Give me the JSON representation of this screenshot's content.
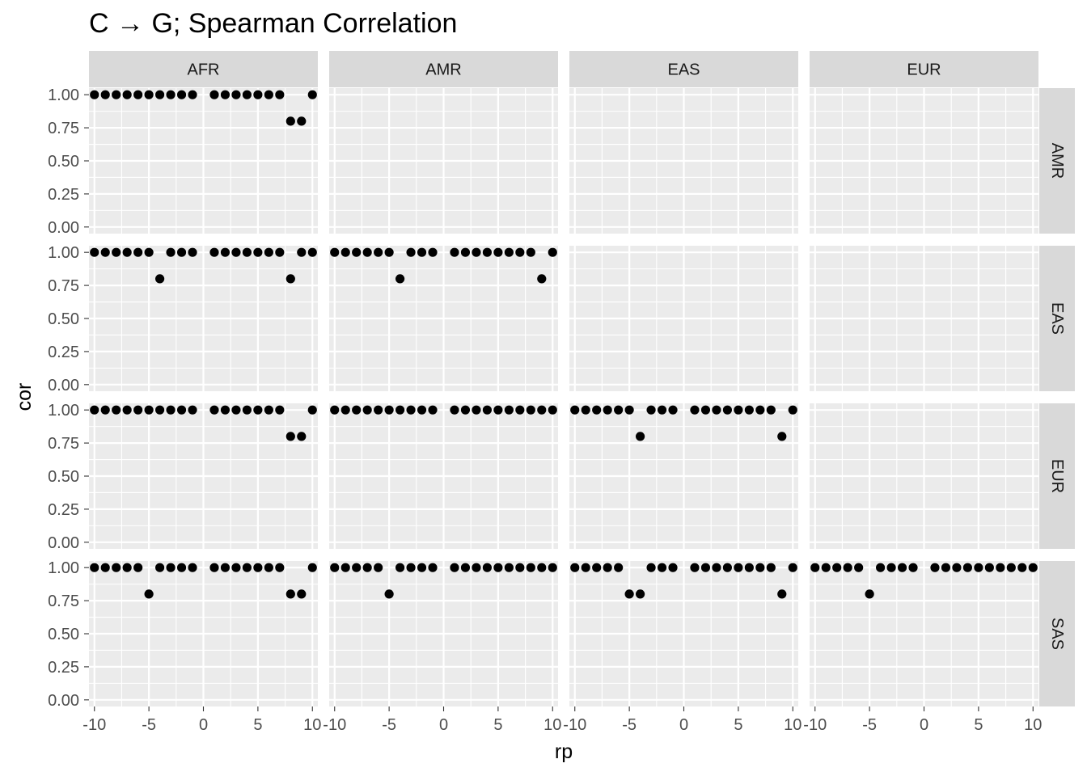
{
  "chart_data": {
    "type": "scatter",
    "title": "C → G; Spearman Correlation",
    "xlabel": "rp",
    "ylabel": "cor",
    "xlim": [
      -10.5,
      10.5
    ],
    "ylim": [
      -0.05,
      1.05
    ],
    "x_ticks": [
      -10,
      -5,
      0,
      5,
      10
    ],
    "x_tick_labels": [
      "-10",
      "-5",
      "0",
      "5",
      "10"
    ],
    "y_ticks": [
      0,
      0.25,
      0.5,
      0.75,
      1.0
    ],
    "y_tick_labels": [
      "0.00",
      "0.25",
      "0.50",
      "0.75",
      "1.00"
    ],
    "facet_cols": [
      "AFR",
      "AMR",
      "EAS",
      "EUR"
    ],
    "facet_rows": [
      "AMR",
      "EAS",
      "EUR",
      "SAS"
    ],
    "grid": true,
    "panels": [
      {
        "row": "AMR",
        "col": "AFR",
        "x": [
          -10,
          -9,
          -8,
          -7,
          -6,
          -5,
          -4,
          -3,
          -2,
          -1,
          1,
          2,
          3,
          4,
          5,
          6,
          7,
          8,
          9,
          10
        ],
        "y": [
          1,
          1,
          1,
          1,
          1,
          1,
          1,
          1,
          1,
          1,
          1,
          1,
          1,
          1,
          1,
          1,
          1,
          0.8,
          0.8,
          1
        ]
      },
      {
        "row": "AMR",
        "col": "AMR",
        "x": [],
        "y": []
      },
      {
        "row": "AMR",
        "col": "EAS",
        "x": [],
        "y": []
      },
      {
        "row": "AMR",
        "col": "EUR",
        "x": [],
        "y": []
      },
      {
        "row": "EAS",
        "col": "AFR",
        "x": [
          -10,
          -9,
          -8,
          -7,
          -6,
          -5,
          -4,
          -3,
          -2,
          -1,
          1,
          2,
          3,
          4,
          5,
          6,
          7,
          8,
          9,
          10
        ],
        "y": [
          1,
          1,
          1,
          1,
          1,
          1,
          0.8,
          1,
          1,
          1,
          1,
          1,
          1,
          1,
          1,
          1,
          1,
          0.8,
          1,
          1
        ]
      },
      {
        "row": "EAS",
        "col": "AMR",
        "x": [
          -10,
          -9,
          -8,
          -7,
          -6,
          -5,
          -4,
          -3,
          -2,
          -1,
          1,
          2,
          3,
          4,
          5,
          6,
          7,
          8,
          9,
          10
        ],
        "y": [
          1,
          1,
          1,
          1,
          1,
          1,
          0.8,
          1,
          1,
          1,
          1,
          1,
          1,
          1,
          1,
          1,
          1,
          1,
          0.8,
          1
        ]
      },
      {
        "row": "EAS",
        "col": "EAS",
        "x": [],
        "y": []
      },
      {
        "row": "EAS",
        "col": "EUR",
        "x": [],
        "y": []
      },
      {
        "row": "EUR",
        "col": "AFR",
        "x": [
          -10,
          -9,
          -8,
          -7,
          -6,
          -5,
          -4,
          -3,
          -2,
          -1,
          1,
          2,
          3,
          4,
          5,
          6,
          7,
          8,
          9,
          10
        ],
        "y": [
          1,
          1,
          1,
          1,
          1,
          1,
          1,
          1,
          1,
          1,
          1,
          1,
          1,
          1,
          1,
          1,
          1,
          0.8,
          0.8,
          1
        ]
      },
      {
        "row": "EUR",
        "col": "AMR",
        "x": [
          -10,
          -9,
          -8,
          -7,
          -6,
          -5,
          -4,
          -3,
          -2,
          -1,
          1,
          2,
          3,
          4,
          5,
          6,
          7,
          8,
          9,
          10
        ],
        "y": [
          1,
          1,
          1,
          1,
          1,
          1,
          1,
          1,
          1,
          1,
          1,
          1,
          1,
          1,
          1,
          1,
          1,
          1,
          1,
          1
        ]
      },
      {
        "row": "EUR",
        "col": "EAS",
        "x": [
          -10,
          -9,
          -8,
          -7,
          -6,
          -5,
          -4,
          -3,
          -2,
          -1,
          1,
          2,
          3,
          4,
          5,
          6,
          7,
          8,
          9,
          10
        ],
        "y": [
          1,
          1,
          1,
          1,
          1,
          1,
          0.8,
          1,
          1,
          1,
          1,
          1,
          1,
          1,
          1,
          1,
          1,
          1,
          0.8,
          1
        ]
      },
      {
        "row": "EUR",
        "col": "EUR",
        "x": [],
        "y": []
      },
      {
        "row": "SAS",
        "col": "AFR",
        "x": [
          -10,
          -9,
          -8,
          -7,
          -6,
          -5,
          -4,
          -3,
          -2,
          -1,
          1,
          2,
          3,
          4,
          5,
          6,
          7,
          8,
          9,
          10
        ],
        "y": [
          1,
          1,
          1,
          1,
          1,
          0.8,
          1,
          1,
          1,
          1,
          1,
          1,
          1,
          1,
          1,
          1,
          1,
          0.8,
          0.8,
          1
        ]
      },
      {
        "row": "SAS",
        "col": "AMR",
        "x": [
          -10,
          -9,
          -8,
          -7,
          -6,
          -5,
          -4,
          -3,
          -2,
          -1,
          1,
          2,
          3,
          4,
          5,
          6,
          7,
          8,
          9,
          10
        ],
        "y": [
          1,
          1,
          1,
          1,
          1,
          0.8,
          1,
          1,
          1,
          1,
          1,
          1,
          1,
          1,
          1,
          1,
          1,
          1,
          1,
          1
        ]
      },
      {
        "row": "SAS",
        "col": "EAS",
        "x": [
          -10,
          -9,
          -8,
          -7,
          -6,
          -5,
          -4,
          -3,
          -2,
          -1,
          1,
          2,
          3,
          4,
          5,
          6,
          7,
          8,
          9,
          10
        ],
        "y": [
          1,
          1,
          1,
          1,
          1,
          0.8,
          0.8,
          1,
          1,
          1,
          1,
          1,
          1,
          1,
          1,
          1,
          1,
          1,
          0.8,
          1
        ]
      },
      {
        "row": "SAS",
        "col": "EUR",
        "x": [
          -10,
          -9,
          -8,
          -7,
          -6,
          -5,
          -4,
          -3,
          -2,
          -1,
          1,
          2,
          3,
          4,
          5,
          6,
          7,
          8,
          9,
          10
        ],
        "y": [
          1,
          1,
          1,
          1,
          1,
          0.8,
          1,
          1,
          1,
          1,
          1,
          1,
          1,
          1,
          1,
          1,
          1,
          1,
          1,
          1
        ]
      }
    ],
    "colors": {
      "panel_background": "#ebebeb",
      "strip_background": "#d9d9d9",
      "grid": "#ffffff",
      "point": "#000000"
    }
  }
}
